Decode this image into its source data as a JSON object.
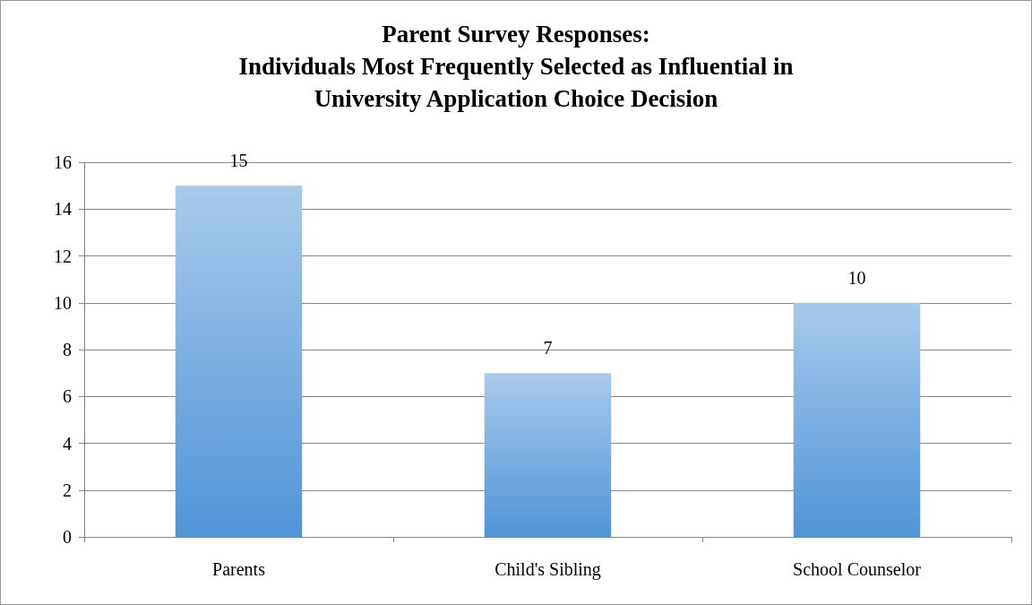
{
  "chart_data": {
    "type": "bar",
    "title": "Parent Survey Responses:\nIndividuals Most Frequently Selected as Influential in\nUniversity Application Choice Decision",
    "categories": [
      "Parents",
      "Child's Sibling",
      "School Counselor"
    ],
    "values": [
      15,
      7,
      10
    ],
    "color": "#4f94d8",
    "ylim": [
      0,
      16
    ],
    "yticks": [
      0,
      2,
      4,
      6,
      8,
      10,
      12,
      14,
      16
    ],
    "grid": "y",
    "data_labels": true
  }
}
